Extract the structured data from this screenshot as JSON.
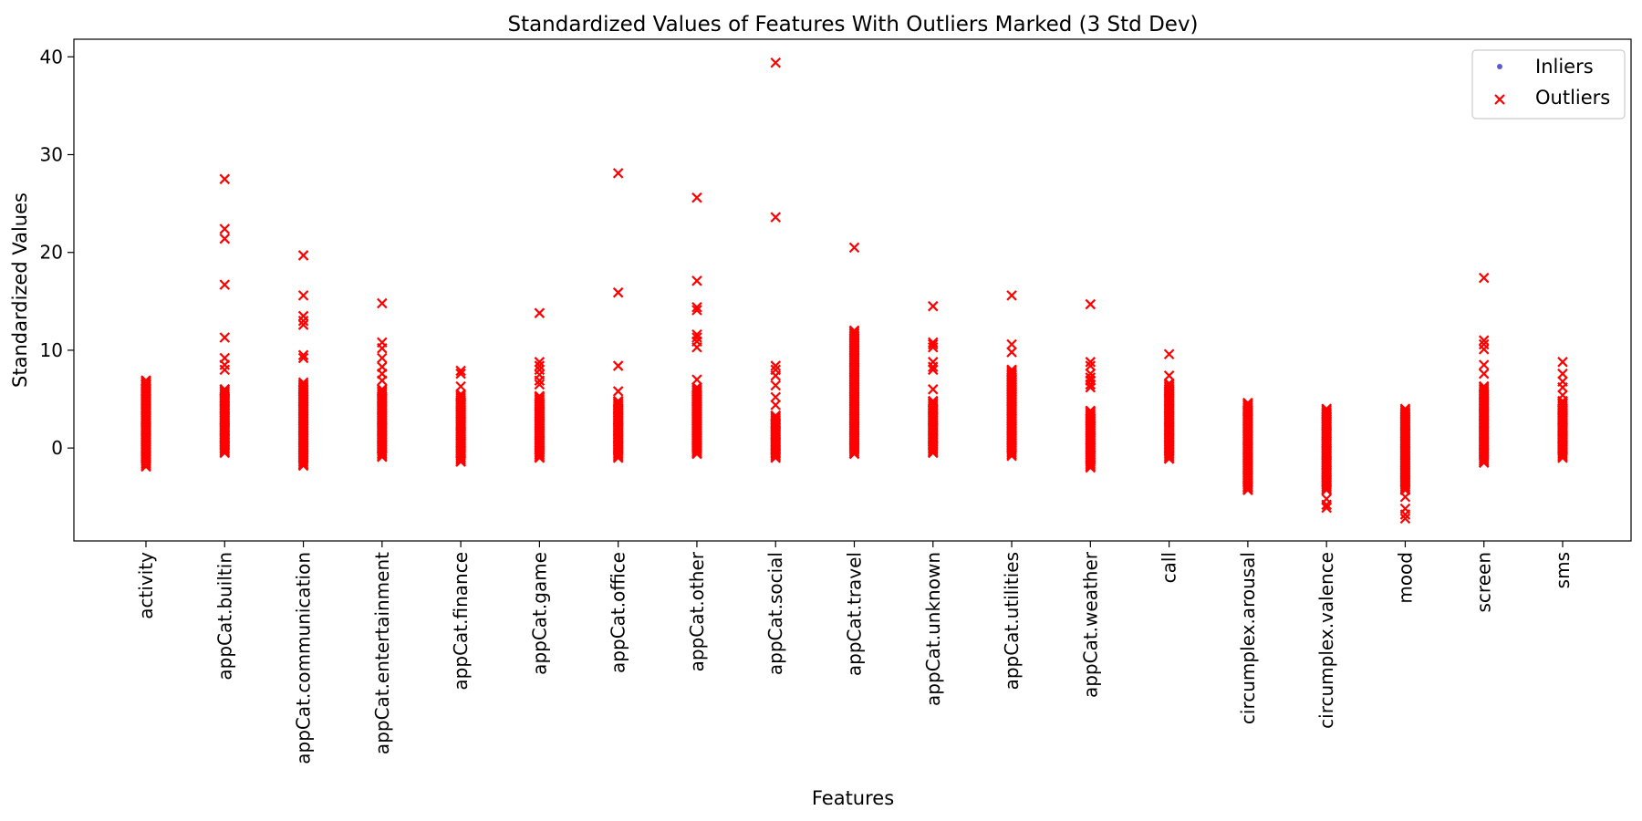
{
  "chart_data": {
    "type": "scatter",
    "title": "Standardized Values of Features With Outliers Marked (3 Std Dev)",
    "xlabel": "Features",
    "ylabel": "Standardized Values",
    "categories": [
      "activity",
      "appCat.builtin",
      "appCat.communication",
      "appCat.entertainment",
      "appCat.finance",
      "appCat.game",
      "appCat.office",
      "appCat.other",
      "appCat.social",
      "appCat.travel",
      "appCat.unknown",
      "appCat.utilities",
      "appCat.weather",
      "call",
      "circumplex.arousal",
      "circumplex.valence",
      "mood",
      "screen",
      "sms"
    ],
    "yticks": [
      0,
      10,
      20,
      30,
      40
    ],
    "ylim": [
      -9.5,
      41.8
    ],
    "grid": false,
    "legend_position": "top-right",
    "legend": [
      {
        "label": "Inliers",
        "marker": "dot",
        "color": "#5b5bd6"
      },
      {
        "label": "Outliers",
        "marker": "x",
        "color": "#ff0000"
      }
    ],
    "series": [
      {
        "name": "Outliers",
        "color": "#ff0000",
        "marker": "x",
        "points": [
          {
            "feature": "activity",
            "range": [
              -1.9,
              6.9
            ],
            "values": [
              6.9,
              6.5,
              6.0,
              5.5,
              5.0,
              4.5,
              4.0,
              3.0,
              2.0,
              1.0,
              0.0,
              -1.0,
              -1.9
            ]
          },
          {
            "feature": "appCat.builtin",
            "range": [
              -0.5,
              6.0
            ],
            "values": [
              27.5,
              22.4,
              21.4,
              16.7,
              11.3,
              9.2,
              8.5,
              8.0,
              6.0,
              5.0,
              4.0,
              3.0,
              2.0,
              1.0,
              0.0,
              -0.5
            ]
          },
          {
            "feature": "appCat.communication",
            "range": [
              -1.8,
              6.5
            ],
            "values": [
              19.7,
              15.6,
              13.5,
              13.0,
              12.6,
              9.5,
              9.2,
              6.7,
              6.0,
              5.0,
              4.0,
              3.0,
              2.0,
              1.0,
              0.0,
              -1.0,
              -1.8
            ]
          },
          {
            "feature": "appCat.entertainment",
            "range": [
              -0.9,
              6.0
            ],
            "values": [
              14.8,
              10.8,
              10.2,
              9.2,
              8.3,
              7.6,
              6.9,
              6.0,
              5.0,
              4.0,
              3.0,
              2.0,
              1.0,
              0.0,
              -0.9
            ]
          },
          {
            "feature": "appCat.finance",
            "range": [
              -1.4,
              5.5
            ],
            "values": [
              7.9,
              7.6,
              6.3,
              5.5,
              4.5,
              3.5,
              2.5,
              1.5,
              0.5,
              -0.5,
              -1.4
            ]
          },
          {
            "feature": "appCat.game",
            "range": [
              -1.0,
              5.3
            ],
            "values": [
              13.8,
              8.8,
              8.4,
              8.0,
              7.5,
              6.9,
              6.5,
              5.3,
              4.5,
              3.5,
              2.5,
              1.5,
              0.5,
              -0.5,
              -1.0
            ]
          },
          {
            "feature": "appCat.office",
            "range": [
              -1.0,
              4.8
            ],
            "values": [
              28.1,
              15.9,
              8.4,
              5.8,
              4.8,
              4.0,
              3.0,
              2.0,
              1.0,
              0.0,
              -1.0
            ]
          },
          {
            "feature": "appCat.other",
            "range": [
              -0.6,
              6.2
            ],
            "values": [
              25.6,
              17.1,
              14.4,
              14.1,
              11.6,
              11.3,
              10.9,
              10.3,
              7.0,
              6.2,
              5.0,
              4.0,
              3.0,
              2.0,
              1.0,
              0.0,
              -0.6
            ]
          },
          {
            "feature": "appCat.social",
            "range": [
              -1.0,
              3.3
            ],
            "values": [
              39.4,
              23.6,
              8.4,
              8.0,
              7.4,
              6.4,
              5.2,
              4.4,
              3.3,
              2.5,
              1.5,
              0.5,
              -0.5,
              -1.0
            ]
          },
          {
            "feature": "appCat.travel",
            "range": [
              -0.6,
              12.0
            ],
            "values": [
              20.5,
              12.0,
              11.4,
              10.8,
              10.0,
              9.0,
              8.0,
              7.0,
              6.0,
              5.0,
              4.0,
              3.0,
              2.0,
              1.0,
              0.0,
              -0.6
            ]
          },
          {
            "feature": "appCat.unknown",
            "range": [
              -0.5,
              4.8
            ],
            "values": [
              14.5,
              10.8,
              10.6,
              10.3,
              8.8,
              8.3,
              8.0,
              6.0,
              4.8,
              4.0,
              3.0,
              2.0,
              1.0,
              0.0,
              -0.5
            ]
          },
          {
            "feature": "appCat.utilities",
            "range": [
              -0.8,
              8.0
            ],
            "values": [
              15.6,
              10.6,
              9.8,
              8.0,
              7.5,
              7.0,
              6.5,
              6.0,
              5.5,
              5.0,
              4.0,
              3.0,
              2.0,
              1.0,
              0.0,
              -0.8
            ]
          },
          {
            "feature": "appCat.weather",
            "range": [
              -2.0,
              3.8
            ],
            "values": [
              14.7,
              8.8,
              8.4,
              7.6,
              7.2,
              6.9,
              6.5,
              6.2,
              3.8,
              3.0,
              2.0,
              1.0,
              0.0,
              -1.0,
              -2.0
            ]
          },
          {
            "feature": "call",
            "range": [
              -1.1,
              6.6
            ],
            "values": [
              9.6,
              7.4,
              6.6,
              6.0,
              5.0,
              4.0,
              3.0,
              2.0,
              1.0,
              0.0,
              -1.1
            ]
          },
          {
            "feature": "circumplex.arousal",
            "range": [
              -4.3,
              4.6
            ],
            "values": [
              4.6,
              4.0,
              3.0,
              2.0,
              1.0,
              0.0,
              -1.0,
              -2.0,
              -3.0,
              -4.0,
              -4.3
            ]
          },
          {
            "feature": "circumplex.valence",
            "range": [
              -4.3,
              4.0
            ],
            "values": [
              4.0,
              3.5,
              2.5,
              1.5,
              0.5,
              -0.5,
              -1.5,
              -2.5,
              -3.5,
              -4.3,
              -5.2,
              -5.8,
              -6.1
            ]
          },
          {
            "feature": "mood",
            "range": [
              -4.3,
              4.0
            ],
            "values": [
              4.0,
              3.5,
              2.5,
              1.5,
              0.5,
              -0.5,
              -1.5,
              -2.5,
              -3.5,
              -4.3,
              -5.0,
              -6.2,
              -6.8,
              -7.2
            ]
          },
          {
            "feature": "screen",
            "range": [
              -1.5,
              6.3
            ],
            "values": [
              17.4,
              11.0,
              10.6,
              10.1,
              8.5,
              7.6,
              6.3,
              5.5,
              4.5,
              3.5,
              2.5,
              1.5,
              0.5,
              -0.5,
              -1.5
            ]
          },
          {
            "feature": "sms",
            "range": [
              -1.0,
              4.8
            ],
            "values": [
              8.8,
              7.6,
              6.8,
              6.2,
              5.4,
              4.8,
              4.0,
              3.0,
              2.0,
              1.0,
              0.0,
              -1.0
            ]
          }
        ]
      }
    ]
  }
}
